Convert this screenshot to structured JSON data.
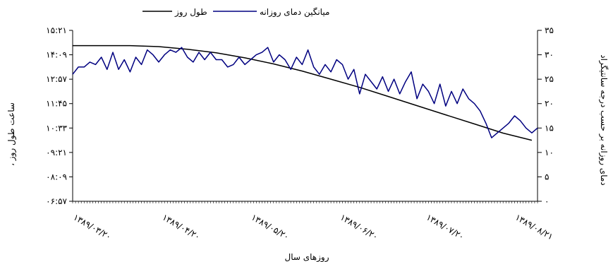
{
  "chart_data": {
    "type": "line",
    "xlabel": "روزهای سال",
    "ylabel_left": "، ساعت طول روز",
    "ylabel_right": "دمای روزانه بر حسب درجه سانتیگراد",
    "legend": [
      {
        "label": "طول روز",
        "series": "day_length",
        "color": "#000000"
      },
      {
        "label": "میانگین دمای روزانه",
        "series": "temperature",
        "color": "#000080"
      }
    ],
    "legend_position": "top",
    "grid": false,
    "x_tick_labels": [
      "۱۳۸۹/۰۳/۲۰",
      "۱۳۸۹/۰۴/۲۰",
      "۱۳۸۹/۰۵/۲۰",
      "۱۳۸۹/۰۶/۲۰",
      "۱۳۸۹/۰۷/۲۰",
      "۱۳۸۹/۰۸/۲۱"
    ],
    "x_tick_day_index": [
      0,
      31,
      62,
      93,
      123,
      154
    ],
    "x_range_days": [
      0,
      162
    ],
    "left_axis": {
      "ticks": [
        "۰۶:۵۷",
        "۰۸:۰۹",
        "۰۹:۲۱",
        "۱۰:۳۳",
        "۱۱:۴۵",
        "۱۲:۵۷",
        "۱۴:۰۹",
        "۱۵:۲۱"
      ],
      "tick_values_hours": [
        6.95,
        8.15,
        9.35,
        10.55,
        11.75,
        12.95,
        14.15,
        15.35
      ],
      "range_hours": [
        6.95,
        15.35
      ]
    },
    "right_axis": {
      "ticks": [
        "۰",
        "۵",
        "۱۰",
        "۱۵",
        "۲۰",
        "۲۵",
        "۳۰",
        "۳۵"
      ],
      "tick_values": [
        0,
        5,
        10,
        15,
        20,
        25,
        30,
        35
      ],
      "range": [
        0,
        35
      ]
    },
    "series": [
      {
        "name": "طول روز",
        "id": "day_length",
        "axis": "left",
        "x": [
          0,
          10,
          20,
          30,
          40,
          50,
          60,
          70,
          80,
          90,
          100,
          110,
          120,
          130,
          140,
          150,
          160
        ],
        "values": [
          14.6,
          14.6,
          14.6,
          14.55,
          14.42,
          14.25,
          14.0,
          13.7,
          13.35,
          12.95,
          12.55,
          12.1,
          11.65,
          11.2,
          10.75,
          10.3,
          9.95
        ]
      },
      {
        "name": "میانگین دمای روزانه",
        "id": "temperature",
        "axis": "right",
        "x": [
          0,
          2,
          4,
          6,
          8,
          10,
          12,
          14,
          16,
          18,
          20,
          22,
          24,
          26,
          28,
          30,
          32,
          34,
          36,
          38,
          40,
          42,
          44,
          46,
          48,
          50,
          52,
          54,
          56,
          58,
          60,
          62,
          64,
          66,
          68,
          70,
          72,
          74,
          76,
          78,
          80,
          82,
          84,
          86,
          88,
          90,
          92,
          94,
          96,
          98,
          100,
          102,
          104,
          106,
          108,
          110,
          112,
          114,
          116,
          118,
          120,
          122,
          124,
          126,
          128,
          130,
          132,
          134,
          136,
          138,
          140,
          142,
          144,
          146,
          148,
          150,
          152,
          154,
          156,
          158,
          160,
          162
        ],
        "values": [
          26.0,
          27.5,
          27.5,
          28.5,
          28.0,
          29.5,
          27.0,
          30.5,
          27.0,
          29.0,
          26.5,
          29.5,
          28.0,
          31.0,
          30.0,
          28.5,
          30.0,
          31.0,
          30.5,
          31.5,
          29.5,
          28.5,
          30.5,
          29.0,
          30.5,
          29.0,
          29.0,
          27.5,
          28.0,
          29.5,
          28.0,
          29.0,
          30.0,
          30.5,
          31.5,
          28.5,
          30.0,
          29.0,
          27.0,
          29.5,
          28.0,
          31.0,
          27.5,
          26.0,
          28.0,
          26.5,
          29.0,
          28.0,
          25.0,
          27.0,
          22.0,
          26.0,
          24.5,
          23.0,
          25.5,
          22.5,
          25.0,
          22.0,
          24.5,
          26.5,
          21.0,
          24.0,
          22.5,
          20.0,
          24.0,
          19.5,
          22.5,
          20.0,
          23.0,
          21.0,
          20.0,
          18.5,
          16.0,
          13.0,
          14.0,
          15.0,
          16.0,
          17.5,
          16.5,
          15.0,
          14.0,
          15.0
        ]
      }
    ]
  }
}
